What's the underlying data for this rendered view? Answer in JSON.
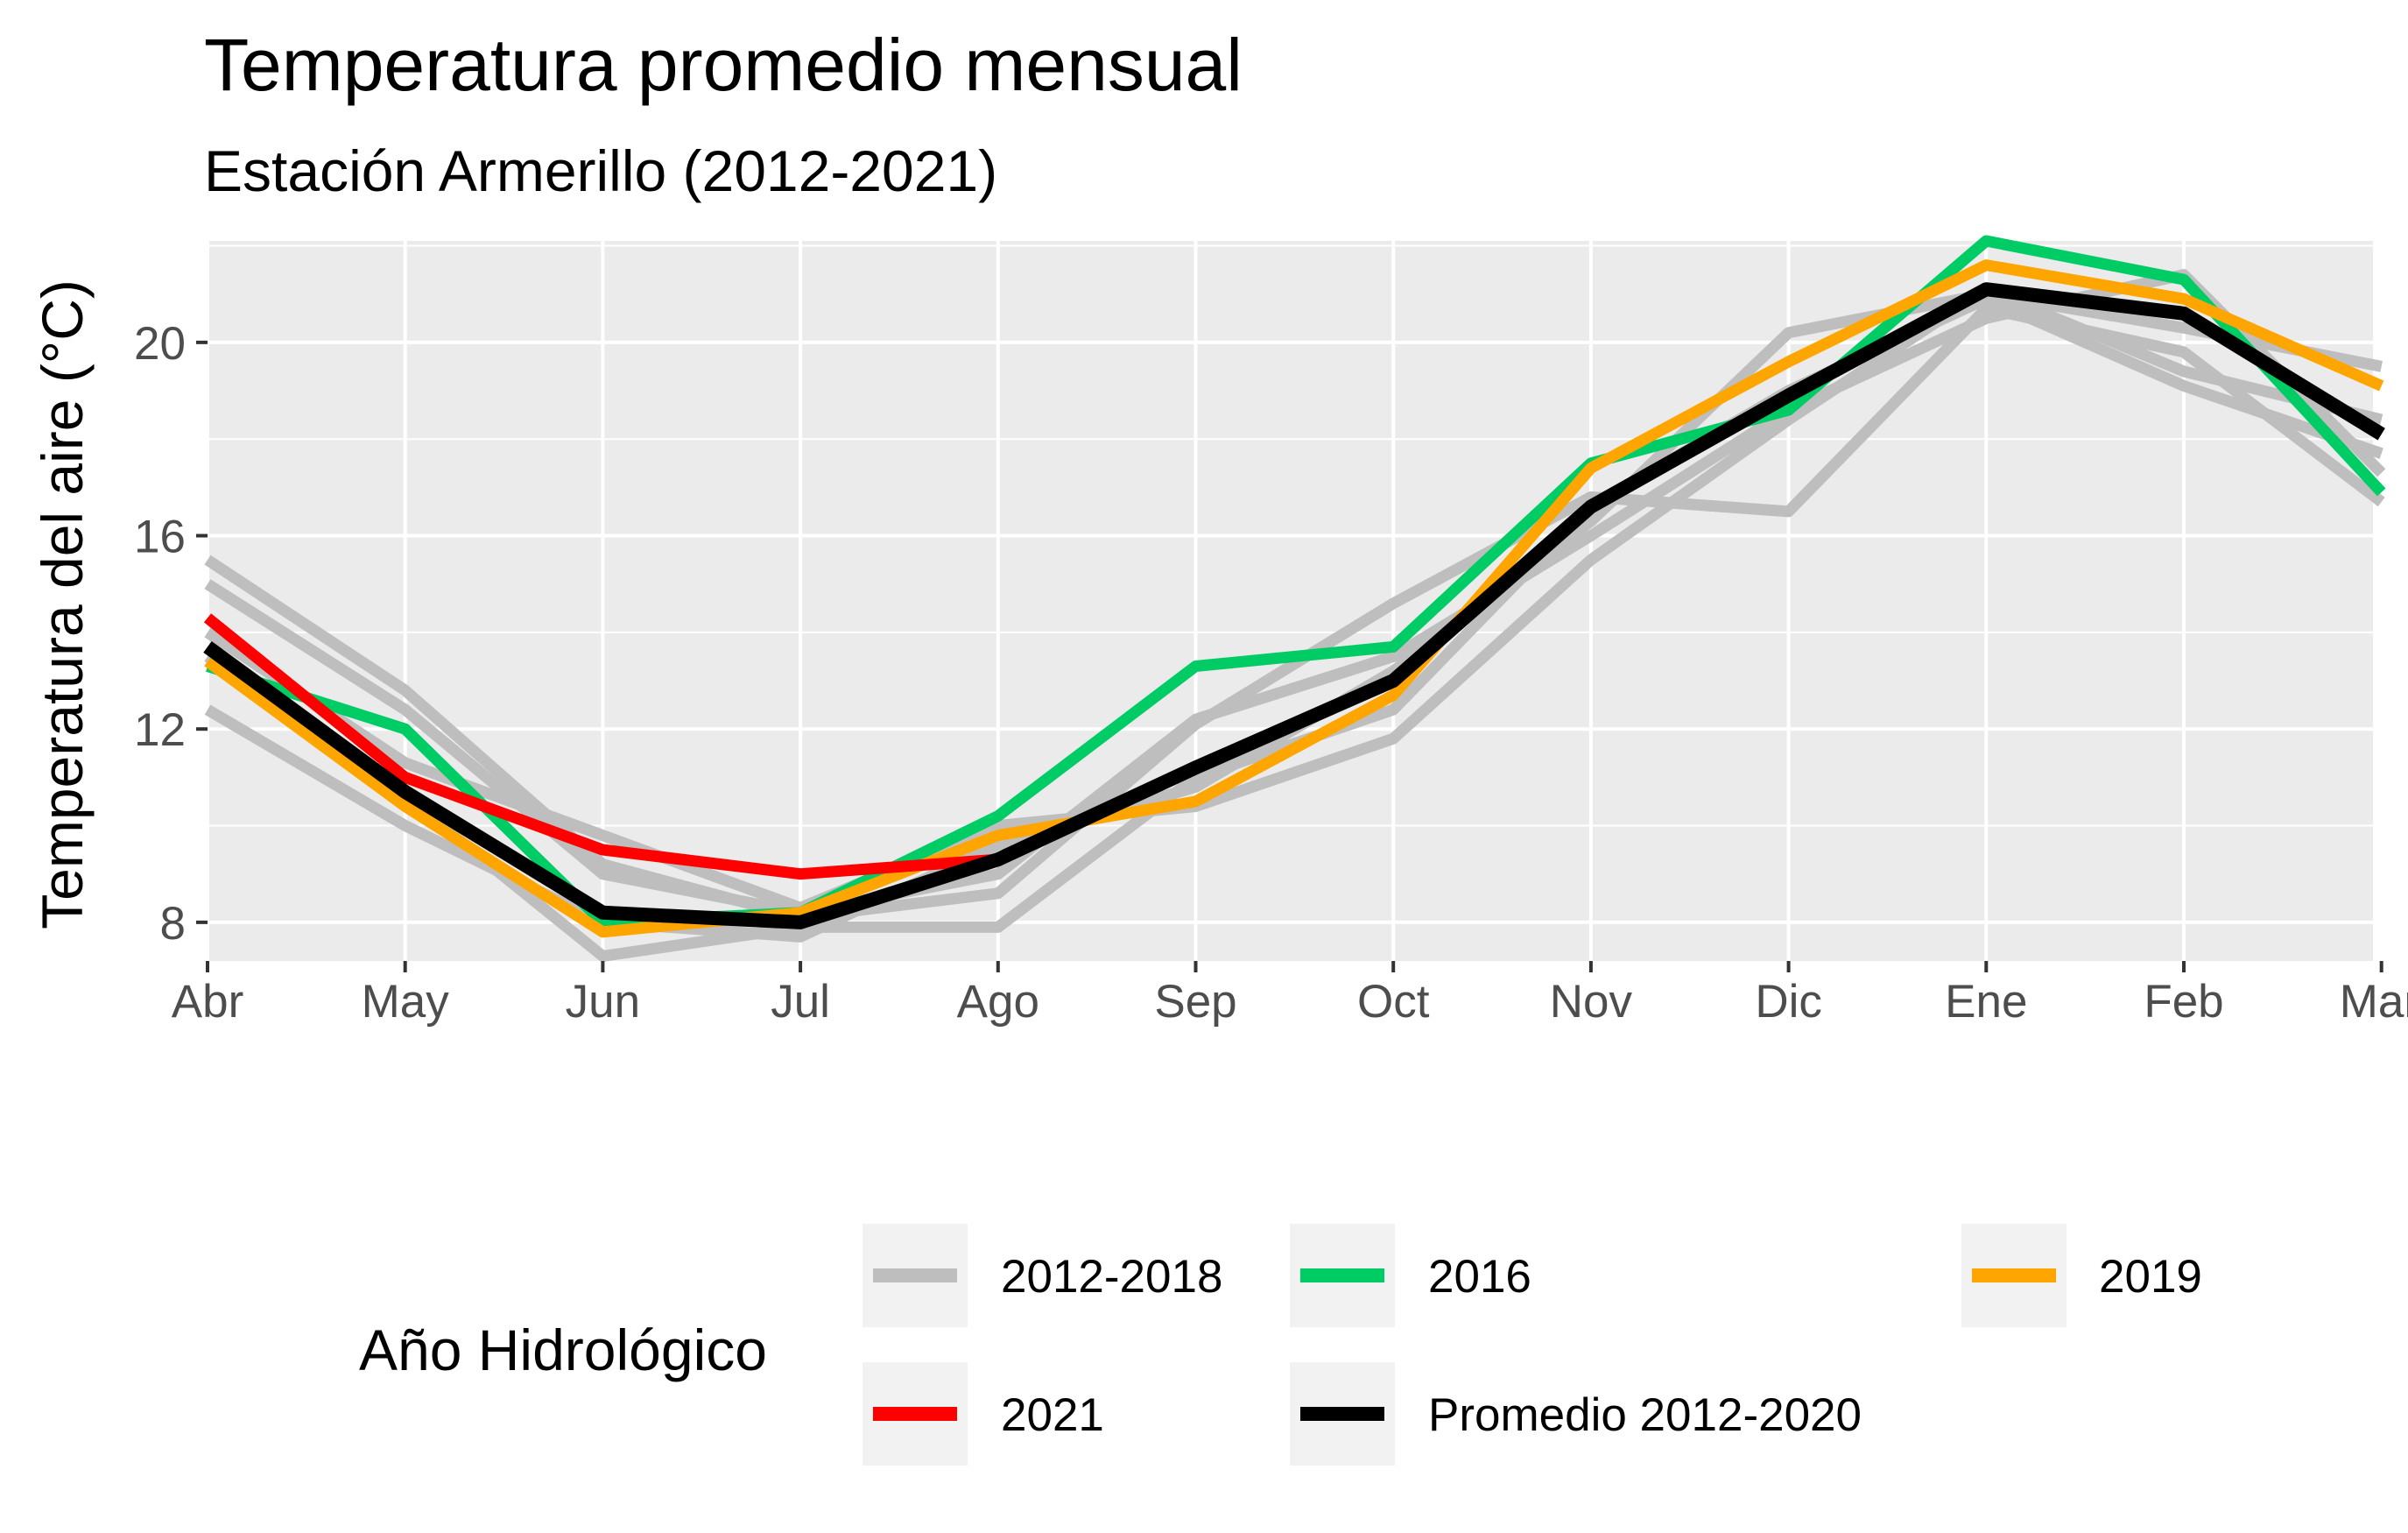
{
  "chart_data": {
    "type": "line",
    "title": "Temperatura promedio mensual",
    "subtitle": "Estación Armerillo (2012-2021)",
    "ylabel": "Temperatura del aire (°C)",
    "xlabel": "",
    "categories": [
      "Abr",
      "May",
      "Jun",
      "Jul",
      "Ago",
      "Sep",
      "Oct",
      "Nov",
      "Dic",
      "Ene",
      "Feb",
      "Mar"
    ],
    "yticks": [
      8,
      12,
      16,
      20
    ],
    "ylim": [
      7.2,
      22.1
    ],
    "grid": true,
    "legend_position": "bottom",
    "legend_title": "Año Hidrológico",
    "legend": [
      {
        "label": "2012-2018",
        "color": "#bebebe"
      },
      {
        "label": "2016",
        "color": "#00cc66"
      },
      {
        "label": "2019",
        "color": "#ffa500"
      },
      {
        "label": "2021",
        "color": "#ff0000"
      },
      {
        "label": "Promedio 2012-2020",
        "color": "#000000"
      }
    ],
    "series": [
      {
        "group": "2012-2018",
        "color": "#bebebe",
        "values": [
          15.5,
          12.8,
          9.2,
          8.1,
          8.6,
          12.1,
          14.6,
          16.8,
          16.5,
          20.7,
          19.8,
          16.7
        ]
      },
      {
        "group": "2012-2018",
        "color": "#bebebe",
        "values": [
          15.0,
          12.4,
          9.0,
          8.2,
          9.0,
          12.2,
          13.5,
          16.0,
          18.6,
          20.5,
          21.4,
          17.3
        ]
      },
      {
        "group": "2012-2018",
        "color": "#bebebe",
        "values": [
          12.4,
          10.0,
          8.0,
          7.7,
          9.6,
          10.8,
          13.2,
          16.3,
          20.2,
          21.0,
          20.3,
          19.5
        ]
      },
      {
        "group": "2012-2018",
        "color": "#bebebe",
        "values": [
          14.0,
          11.3,
          9.8,
          8.3,
          10.0,
          10.4,
          11.8,
          15.5,
          18.4,
          21.1,
          19.4,
          18.4
        ]
      },
      {
        "group": "2012-2018",
        "color": "#bebebe",
        "values": [
          13.5,
          10.6,
          7.3,
          7.9,
          7.9,
          11.0,
          12.4,
          16.6,
          19.0,
          20.9,
          19.1,
          17.7
        ]
      },
      {
        "group": "2016",
        "color": "#00cc66",
        "values": [
          13.3,
          12.0,
          8.0,
          8.2,
          10.2,
          13.3,
          13.7,
          17.5,
          18.6,
          22.1,
          21.3,
          16.9
        ]
      },
      {
        "group": "2019",
        "color": "#ffa500",
        "values": [
          13.4,
          10.4,
          7.8,
          8.2,
          9.8,
          10.5,
          12.7,
          17.4,
          19.6,
          21.6,
          20.9,
          19.1
        ]
      },
      {
        "group": "2021",
        "color": "#ff0000",
        "values": [
          14.3,
          11.0,
          9.5,
          9.0,
          9.3,
          null,
          null,
          null,
          null,
          null,
          null,
          null
        ]
      },
      {
        "group": "Promedio 2012-2020",
        "color": "#000000",
        "values": [
          13.7,
          10.7,
          8.2,
          8.0,
          9.3,
          11.2,
          13.0,
          16.6,
          18.9,
          21.1,
          20.6,
          18.1
        ]
      }
    ]
  }
}
